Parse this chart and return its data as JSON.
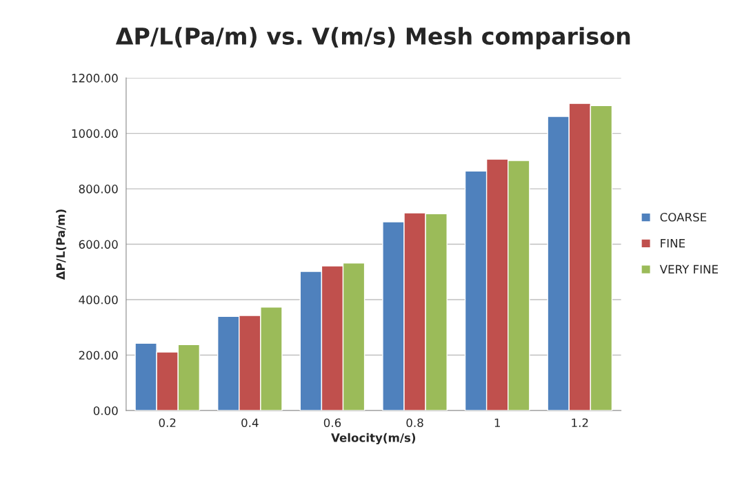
{
  "chart_data": {
    "type": "bar",
    "title": "ΔP/L(Pa/m) vs. V(m/s) Mesh comparison",
    "xlabel": "Velocity(m/s)",
    "ylabel": "ΔP/L(Pa/m)",
    "categories": [
      "0.2",
      "0.4",
      "0.6",
      "0.8",
      "1",
      "1.2"
    ],
    "series": [
      {
        "name": "COARSE",
        "color": "#4f81bd",
        "values": [
          243,
          340,
          502,
          681,
          864,
          1061
        ]
      },
      {
        "name": "FINE",
        "color": "#c0504d",
        "values": [
          211,
          343,
          522,
          713,
          907,
          1108
        ]
      },
      {
        "name": "VERY FINE",
        "color": "#9bbb59",
        "values": [
          238,
          373,
          532,
          710,
          902,
          1100
        ]
      }
    ],
    "ylim": [
      0,
      1200
    ],
    "yticks": [
      {
        "value": 0,
        "label": "0.00"
      },
      {
        "value": 200,
        "label": "200.00"
      },
      {
        "value": 400,
        "label": "400.00"
      },
      {
        "value": 600,
        "label": "600.00"
      },
      {
        "value": 800,
        "label": "800.00"
      },
      {
        "value": 1000,
        "label": "1000.00"
      },
      {
        "value": 1200,
        "label": "1200.00"
      }
    ],
    "grid": "y",
    "legend": "right"
  }
}
